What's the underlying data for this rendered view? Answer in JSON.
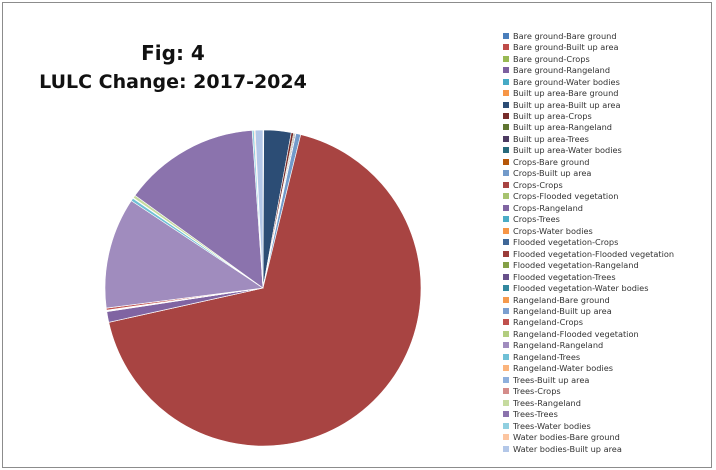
{
  "title_line1": "Fig: 4",
  "title_line2": "LULC Change: 2017-2024",
  "chart_data": {
    "type": "pie",
    "title": "Fig: 4 LULC Change: 2017-2024",
    "legend_position": "right",
    "categories": [
      "Bare ground-Bare ground",
      "Bare ground-Built up area",
      "Bare ground-Crops",
      "Bare ground-Rangeland",
      "Bare ground-Water bodies",
      "Built up area-Bare ground",
      "Built up area-Built up area",
      "Built up area-Crops",
      "Built up area-Rangeland",
      "Built up area-Trees",
      "Built up area-Water bodies",
      "Crops-Bare ground",
      "Crops-Built up area",
      "Crops-Crops",
      "Crops-Flooded vegetation",
      "Crops-Rangeland",
      "Crops-Trees",
      "Crops-Water bodies",
      "Flooded vegetation-Crops",
      "Flooded vegetation-Flooded vegetation",
      "Flooded vegetation-Rangeland",
      "Flooded vegetation-Trees",
      "Flooded vegetation-Water bodies",
      "Rangeland-Bare ground",
      "Rangeland-Built up area",
      "Rangeland-Crops",
      "Rangeland-Flooded vegetation",
      "Rangeland-Rangeland",
      "Rangeland-Trees",
      "Rangeland-Water bodies",
      "Trees-Built up area",
      "Trees-Crops",
      "Trees-Rangeland",
      "Trees-Trees",
      "Trees-Water bodies",
      "Water bodies-Bare ground",
      "Water bodies-Built up area"
    ],
    "values": [
      0.02,
      0.01,
      0.01,
      0.01,
      0.01,
      0.02,
      2.8,
      0.25,
      0.1,
      0.1,
      0.02,
      0.01,
      0.5,
      68.0,
      0.01,
      1.1,
      0.02,
      0.02,
      0.01,
      0.01,
      0.01,
      0.01,
      0.01,
      0.01,
      0.05,
      0.2,
      0.01,
      11.4,
      0.3,
      0.02,
      0.02,
      0.02,
      0.3,
      14.0,
      0.2,
      0.1,
      0.8
    ],
    "colors": [
      "#4a7ebb",
      "#be4b48",
      "#98b954",
      "#7d60a0",
      "#46aac5",
      "#f79646",
      "#2c4d75",
      "#772c2a",
      "#5f7530",
      "#4d3b62",
      "#276a7c",
      "#b65708",
      "#729aca",
      "#a84442",
      "#a7c36f",
      "#8064a2",
      "#4bacc6",
      "#f79646",
      "#3f6797",
      "#9b3c3a",
      "#84a046",
      "#67508a",
      "#32889e",
      "#f59a4e",
      "#7b9fd0",
      "#c0504d",
      "#b2cd7f",
      "#a08cbe",
      "#6fc0d6",
      "#fbb47c",
      "#8eb0dd",
      "#d48c8a",
      "#c6db9f",
      "#8b73ad",
      "#90cfe0",
      "#fcc5a0",
      "#b3c7e8"
    ]
  }
}
